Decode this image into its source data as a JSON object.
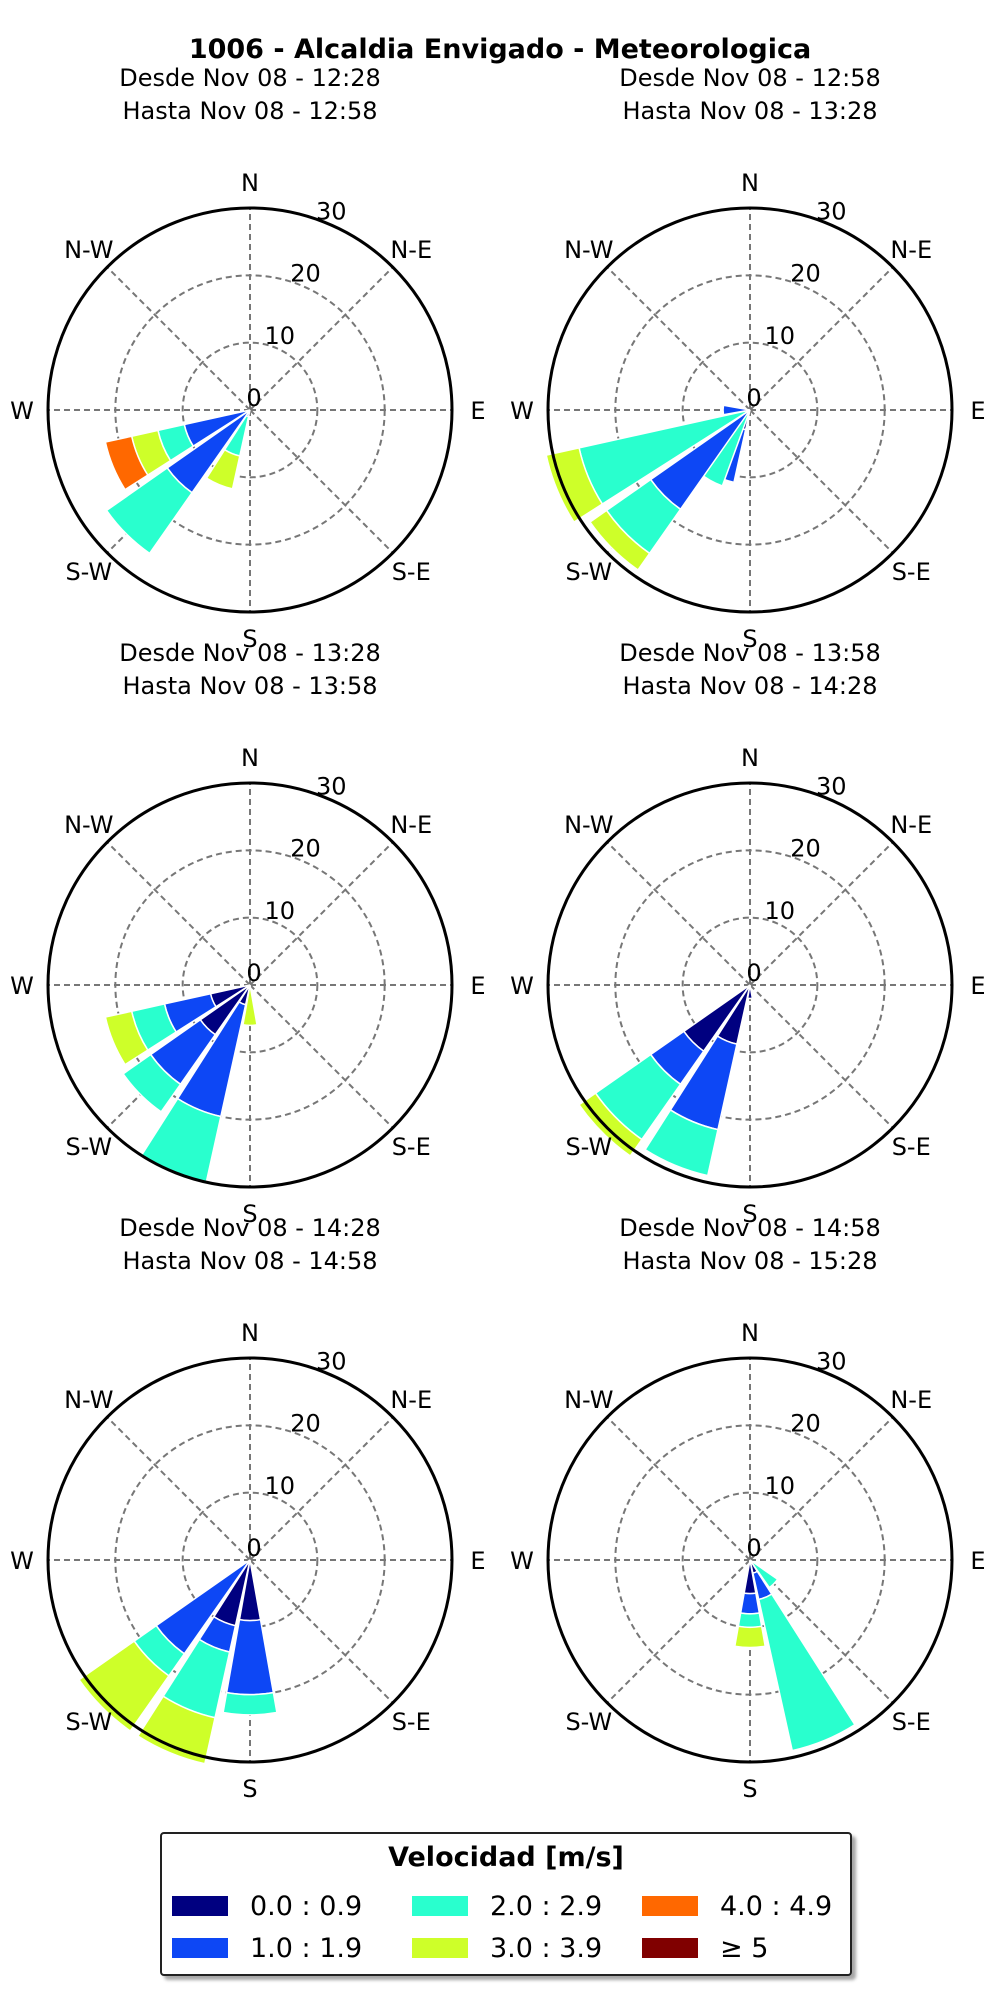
{
  "title": "1006 - Alcaldia Envigado - Meteorologica",
  "compass_labels": [
    "N",
    "N-E",
    "E",
    "S-E",
    "S",
    "S-W",
    "W",
    "N-W"
  ],
  "radial_ticks": [
    "0",
    "10",
    "20",
    "30"
  ],
  "legend": {
    "title": "Velocidad [m/s]",
    "items": [
      {
        "label": "0.0 : 0.9",
        "color": "#000080"
      },
      {
        "label": "1.0 : 1.9",
        "color": "#0d47f5"
      },
      {
        "label": "2.0 : 2.9",
        "color": "#29ffce"
      },
      {
        "label": "3.0 : 3.9",
        "color": "#ceff29"
      },
      {
        "label": "4.0 : 4.9",
        "color": "#ff6800"
      },
      {
        "label": "≥ 5",
        "color": "#800000"
      }
    ]
  },
  "chart_data": [
    {
      "type": "windrose",
      "subtitle_1": "Desde Nov 08 - 12:28",
      "subtitle_2": "Hasta Nov 08 - 12:58",
      "rmax": 30,
      "bins": [
        "0.0 : 0.9",
        "1.0 : 1.9",
        "2.0 : 2.9",
        "3.0 : 3.9",
        "4.0 : 4.9",
        "≥ 5"
      ],
      "sectors": [
        {
          "direction": 202.5,
          "stack": [
            0,
            1,
            7,
            12,
            0,
            0
          ]
        },
        {
          "direction": 225,
          "stack": [
            0,
            15,
            26,
            0,
            0,
            0
          ]
        },
        {
          "direction": 247.5,
          "stack": [
            0,
            10,
            14,
            18,
            22,
            0
          ]
        }
      ]
    },
    {
      "type": "windrose",
      "subtitle_1": "Desde Nov 08 - 12:58",
      "subtitle_2": "Hasta Nov 08 - 13:28",
      "rmax": 30,
      "bins": [
        "0.0 : 0.9",
        "1.0 : 1.9",
        "2.0 : 2.9",
        "3.0 : 3.9",
        "4.0 : 4.9",
        "≥ 5"
      ],
      "sectors": [
        {
          "direction": 202.5,
          "stack": [
            3,
            11,
            0,
            0,
            0,
            0
          ]
        },
        {
          "direction": 210,
          "stack": [
            0,
            0,
            12,
            0,
            0,
            0
          ]
        },
        {
          "direction": 225,
          "stack": [
            0,
            18,
            26,
            29,
            0,
            0
          ]
        },
        {
          "direction": 247.5,
          "stack": [
            0,
            0,
            26,
            31,
            0,
            0
          ]
        },
        {
          "direction": 270,
          "stack": [
            0,
            4,
            0,
            0,
            0,
            0
          ]
        }
      ]
    },
    {
      "type": "windrose",
      "subtitle_1": "Desde Nov 08 - 13:28",
      "subtitle_2": "Hasta Nov 08 - 13:58",
      "rmax": 30,
      "bins": [
        "0.0 : 0.9",
        "1.0 : 1.9",
        "2.0 : 2.9",
        "3.0 : 3.9",
        "4.0 : 4.9",
        "≥ 5"
      ],
      "sectors": [
        {
          "direction": 180,
          "stack": [
            0,
            0,
            0,
            6,
            0,
            0
          ]
        },
        {
          "direction": 202.5,
          "stack": [
            3,
            20,
            30,
            0,
            0,
            0
          ]
        },
        {
          "direction": 225,
          "stack": [
            9,
            18,
            23,
            0,
            0,
            0
          ]
        },
        {
          "direction": 247.5,
          "stack": [
            6,
            13,
            18,
            22,
            0,
            0
          ]
        }
      ]
    },
    {
      "type": "windrose",
      "subtitle_1": "Desde Nov 08 - 13:58",
      "subtitle_2": "Hasta Nov 08 - 14:28",
      "rmax": 30,
      "bins": [
        "0.0 : 0.9",
        "1.0 : 1.9",
        "2.0 : 2.9",
        "3.0 : 3.9",
        "4.0 : 4.9",
        "≥ 5"
      ],
      "sectors": [
        {
          "direction": 180,
          "stack": [
            2,
            0,
            0,
            0,
            0,
            0
          ]
        },
        {
          "direction": 202.5,
          "stack": [
            9,
            22,
            29,
            0,
            0,
            0
          ]
        },
        {
          "direction": 225,
          "stack": [
            12,
            18,
            28,
            31,
            0,
            0
          ]
        }
      ]
    },
    {
      "type": "windrose",
      "subtitle_1": "Desde Nov 08 - 14:28",
      "subtitle_2": "Hasta Nov 08 - 14:58",
      "rmax": 30,
      "bins": [
        "0.0 : 0.9",
        "1.0 : 1.9",
        "2.0 : 2.9",
        "3.0 : 3.9",
        "4.0 : 4.9",
        "≥ 5"
      ],
      "sectors": [
        {
          "direction": 180,
          "stack": [
            9,
            20,
            23,
            0,
            0,
            0
          ]
        },
        {
          "direction": 202.5,
          "stack": [
            10,
            14,
            24,
            31,
            0,
            0
          ]
        },
        {
          "direction": 225,
          "stack": [
            0,
            17,
            21,
            31,
            0,
            0
          ]
        }
      ]
    },
    {
      "type": "windrose",
      "subtitle_1": "Desde Nov 08 - 14:58",
      "subtitle_2": "Hasta Nov 08 - 15:28",
      "rmax": 30,
      "bins": [
        "0.0 : 0.9",
        "1.0 : 1.9",
        "2.0 : 2.9",
        "3.0 : 3.9",
        "4.0 : 4.9",
        "≥ 5"
      ],
      "sectors": [
        {
          "direction": 135,
          "stack": [
            0,
            0,
            5,
            0,
            0,
            0
          ]
        },
        {
          "direction": 157.5,
          "stack": [
            2,
            6,
            29,
            0,
            0,
            0
          ]
        },
        {
          "direction": 180,
          "stack": [
            5,
            8,
            10,
            13,
            0,
            0
          ]
        }
      ]
    }
  ]
}
